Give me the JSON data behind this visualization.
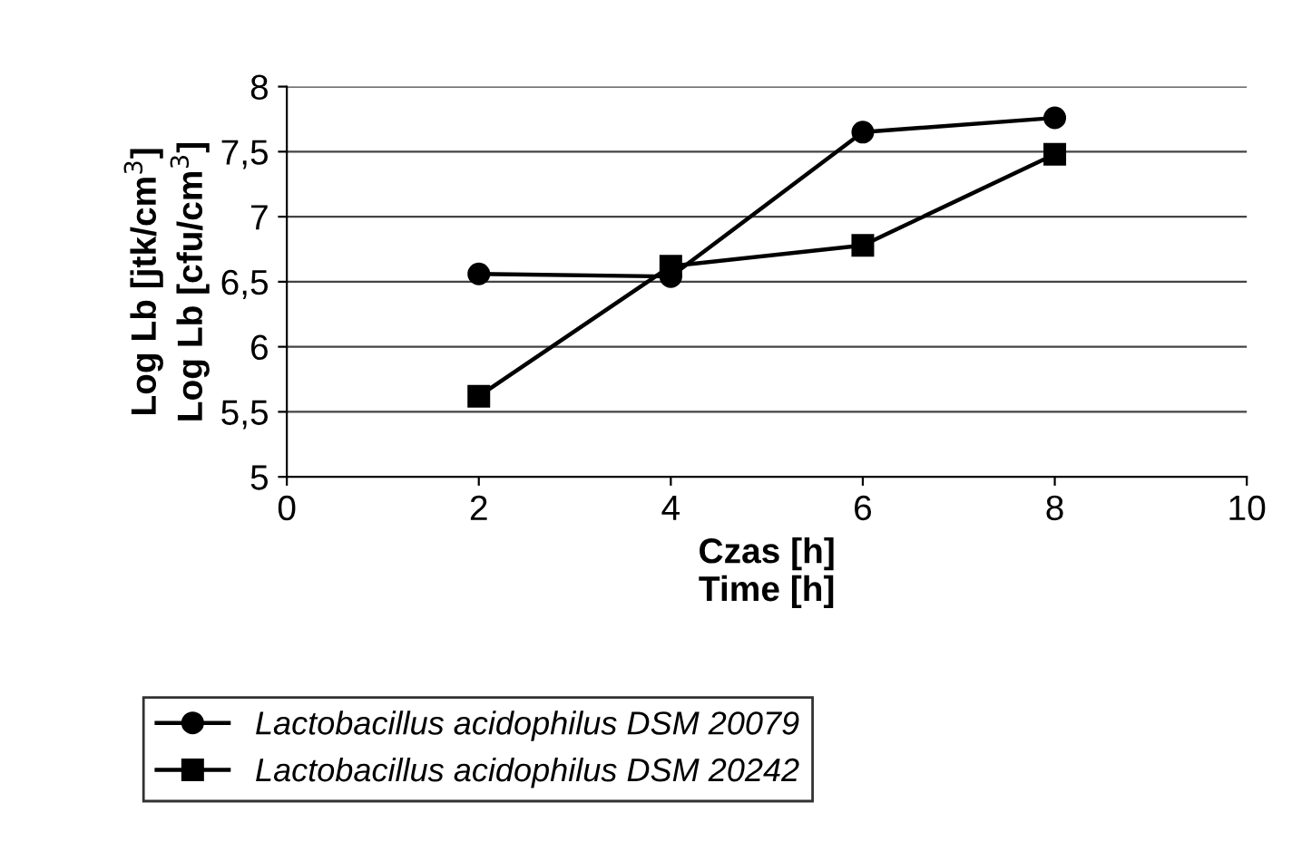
{
  "chart_data": {
    "type": "line",
    "xlabel": "Czas [h]\nTime [h]",
    "ylabel": "Log Lb [jtk/cm$^{3}$]\nLog Lb [cfu/cm$^{3}$]",
    "x": [
      2,
      4,
      6,
      8
    ],
    "series": [
      {
        "name": "Lactobacillus acidophilus DSM 20079",
        "color": "#000000",
        "marker": "circle",
        "values": [
          6.56,
          6.54,
          7.65,
          7.76
        ]
      },
      {
        "name": "Lactobacillus acidophilus DSM 20242",
        "color": "#000000",
        "marker": "square",
        "values": [
          5.62,
          6.62,
          6.78,
          7.48
        ]
      }
    ],
    "xlim": [
      0,
      10
    ],
    "xticks": [
      0,
      2,
      4,
      6,
      8,
      10
    ],
    "ylim": [
      5,
      8
    ],
    "yticks": [
      5,
      {
        "value": 5.5,
        "label": "5,5"
      },
      6,
      {
        "value": 6.5,
        "label": "6,5"
      },
      7,
      {
        "value": 7.5,
        "label": "7,5"
      },
      8
    ],
    "grid": "y",
    "legend": "bottom",
    "line_style": "solid"
  }
}
